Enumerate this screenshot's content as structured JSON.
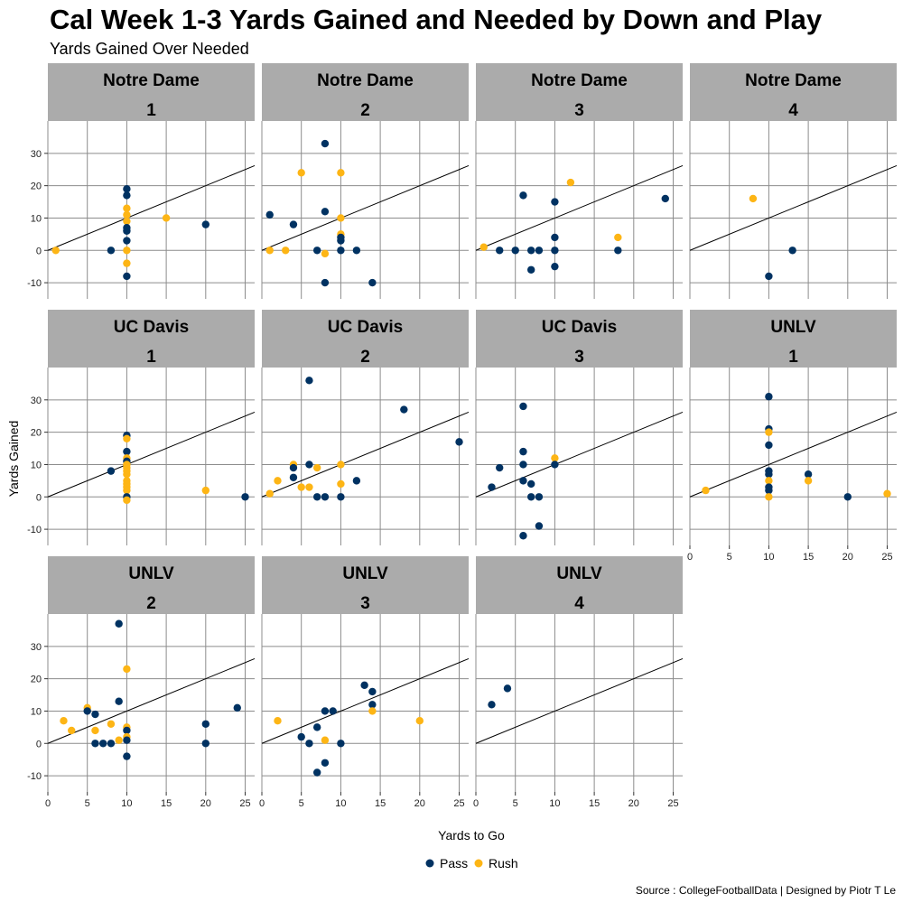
{
  "chart_data": {
    "type": "scatter",
    "title": "Cal Week 1-3 Yards Gained and Needed by Down and Play",
    "subtitle": "Yards Gained Over Needed",
    "xlabel": "Yards to Go",
    "ylabel": "Yards Gained",
    "xlim": [
      0,
      26.2
    ],
    "ylim": [
      -15,
      40
    ],
    "xticks": [
      0,
      5,
      10,
      15,
      20,
      25
    ],
    "yticks": [
      -10,
      0,
      10,
      20,
      30
    ],
    "reference_line": "y = x",
    "caption": "Source : CollegeFootballData | Designed by Piotr T Le",
    "legend": [
      {
        "name": "Pass",
        "color": "#003262"
      },
      {
        "name": "Rush",
        "color": "#FDB515"
      }
    ],
    "colors": {
      "Pass": "#003262",
      "Rush": "#FDB515",
      "strip": "#ABABAB",
      "grid": "#8C8C8C"
    },
    "panels": [
      {
        "opponent": "Notre Dame",
        "down": "1",
        "points": [
          {
            "x": 1,
            "y": 0,
            "play": "Rush"
          },
          {
            "x": 8,
            "y": 0,
            "play": "Pass"
          },
          {
            "x": 10,
            "y": 19,
            "play": "Pass"
          },
          {
            "x": 10,
            "y": 17,
            "play": "Pass"
          },
          {
            "x": 10,
            "y": 13,
            "play": "Rush"
          },
          {
            "x": 10,
            "y": 11,
            "play": "Rush"
          },
          {
            "x": 10,
            "y": 9,
            "play": "Rush"
          },
          {
            "x": 10,
            "y": 7,
            "play": "Pass"
          },
          {
            "x": 10,
            "y": 6,
            "play": "Pass"
          },
          {
            "x": 10,
            "y": 3,
            "play": "Pass"
          },
          {
            "x": 10,
            "y": 0,
            "play": "Rush"
          },
          {
            "x": 10,
            "y": -4,
            "play": "Rush"
          },
          {
            "x": 10,
            "y": -8,
            "play": "Pass"
          },
          {
            "x": 15,
            "y": 10,
            "play": "Rush"
          },
          {
            "x": 20,
            "y": 8,
            "play": "Pass"
          }
        ]
      },
      {
        "opponent": "Notre Dame",
        "down": "2",
        "points": [
          {
            "x": 1,
            "y": 11,
            "play": "Pass"
          },
          {
            "x": 1,
            "y": 0,
            "play": "Rush"
          },
          {
            "x": 3,
            "y": 0,
            "play": "Rush"
          },
          {
            "x": 4,
            "y": 8,
            "play": "Pass"
          },
          {
            "x": 5,
            "y": 24,
            "play": "Rush"
          },
          {
            "x": 7,
            "y": 0,
            "play": "Pass"
          },
          {
            "x": 8,
            "y": 33,
            "play": "Pass"
          },
          {
            "x": 8,
            "y": 12,
            "play": "Pass"
          },
          {
            "x": 8,
            "y": -1,
            "play": "Rush"
          },
          {
            "x": 8,
            "y": -10,
            "play": "Pass"
          },
          {
            "x": 10,
            "y": 24,
            "play": "Rush"
          },
          {
            "x": 10,
            "y": 10,
            "play": "Rush"
          },
          {
            "x": 10,
            "y": 5,
            "play": "Rush"
          },
          {
            "x": 10,
            "y": 4,
            "play": "Pass"
          },
          {
            "x": 10,
            "y": 3,
            "play": "Pass"
          },
          {
            "x": 10,
            "y": 0,
            "play": "Pass"
          },
          {
            "x": 12,
            "y": 0,
            "play": "Pass"
          },
          {
            "x": 14,
            "y": -10,
            "play": "Pass"
          }
        ]
      },
      {
        "opponent": "Notre Dame",
        "down": "3",
        "points": [
          {
            "x": 1,
            "y": 1,
            "play": "Rush"
          },
          {
            "x": 3,
            "y": 0,
            "play": "Pass"
          },
          {
            "x": 5,
            "y": 0,
            "play": "Pass"
          },
          {
            "x": 6,
            "y": 17,
            "play": "Pass"
          },
          {
            "x": 7,
            "y": 0,
            "play": "Pass"
          },
          {
            "x": 7,
            "y": -6,
            "play": "Pass"
          },
          {
            "x": 8,
            "y": 0,
            "play": "Pass"
          },
          {
            "x": 10,
            "y": 15,
            "play": "Pass"
          },
          {
            "x": 10,
            "y": 4,
            "play": "Pass"
          },
          {
            "x": 10,
            "y": 0,
            "play": "Pass"
          },
          {
            "x": 10,
            "y": -5,
            "play": "Pass"
          },
          {
            "x": 12,
            "y": 21,
            "play": "Rush"
          },
          {
            "x": 18,
            "y": 4,
            "play": "Rush"
          },
          {
            "x": 18,
            "y": 0,
            "play": "Pass"
          },
          {
            "x": 24,
            "y": 16,
            "play": "Pass"
          }
        ]
      },
      {
        "opponent": "Notre Dame",
        "down": "4",
        "points": [
          {
            "x": 8,
            "y": 16,
            "play": "Rush"
          },
          {
            "x": 10,
            "y": -8,
            "play": "Pass"
          },
          {
            "x": 13,
            "y": 0,
            "play": "Pass"
          }
        ]
      },
      {
        "opponent": "UC Davis",
        "down": "1",
        "points": [
          {
            "x": 8,
            "y": 8,
            "play": "Pass"
          },
          {
            "x": 10,
            "y": 19,
            "play": "Pass"
          },
          {
            "x": 10,
            "y": 18,
            "play": "Rush"
          },
          {
            "x": 10,
            "y": 14,
            "play": "Pass"
          },
          {
            "x": 10,
            "y": 12,
            "play": "Rush"
          },
          {
            "x": 10,
            "y": 11,
            "play": "Pass"
          },
          {
            "x": 10,
            "y": 10,
            "play": "Rush"
          },
          {
            "x": 10,
            "y": 9,
            "play": "Rush"
          },
          {
            "x": 10,
            "y": 8,
            "play": "Rush"
          },
          {
            "x": 10,
            "y": 7,
            "play": "Rush"
          },
          {
            "x": 10,
            "y": 5,
            "play": "Rush"
          },
          {
            "x": 10,
            "y": 4,
            "play": "Rush"
          },
          {
            "x": 10,
            "y": 3,
            "play": "Rush"
          },
          {
            "x": 10,
            "y": 2,
            "play": "Rush"
          },
          {
            "x": 10,
            "y": 0,
            "play": "Pass"
          },
          {
            "x": 10,
            "y": -1,
            "play": "Rush"
          },
          {
            "x": 20,
            "y": 2,
            "play": "Rush"
          },
          {
            "x": 25,
            "y": 0,
            "play": "Pass"
          }
        ]
      },
      {
        "opponent": "UC Davis",
        "down": "2",
        "points": [
          {
            "x": 1,
            "y": 1,
            "play": "Rush"
          },
          {
            "x": 2,
            "y": 5,
            "play": "Rush"
          },
          {
            "x": 4,
            "y": 10,
            "play": "Rush"
          },
          {
            "x": 4,
            "y": 9,
            "play": "Pass"
          },
          {
            "x": 4,
            "y": 6,
            "play": "Pass"
          },
          {
            "x": 5,
            "y": 3,
            "play": "Rush"
          },
          {
            "x": 6,
            "y": 36,
            "play": "Pass"
          },
          {
            "x": 6,
            "y": 10,
            "play": "Pass"
          },
          {
            "x": 6,
            "y": 3,
            "play": "Rush"
          },
          {
            "x": 7,
            "y": 9,
            "play": "Rush"
          },
          {
            "x": 7,
            "y": 0,
            "play": "Pass"
          },
          {
            "x": 8,
            "y": 0,
            "play": "Pass"
          },
          {
            "x": 10,
            "y": 10,
            "play": "Rush"
          },
          {
            "x": 10,
            "y": 4,
            "play": "Rush"
          },
          {
            "x": 10,
            "y": 0,
            "play": "Pass"
          },
          {
            "x": 12,
            "y": 5,
            "play": "Pass"
          },
          {
            "x": 18,
            "y": 27,
            "play": "Pass"
          },
          {
            "x": 25,
            "y": 17,
            "play": "Pass"
          }
        ]
      },
      {
        "opponent": "UC Davis",
        "down": "3",
        "points": [
          {
            "x": 2,
            "y": 3,
            "play": "Pass"
          },
          {
            "x": 3,
            "y": 9,
            "play": "Pass"
          },
          {
            "x": 6,
            "y": 28,
            "play": "Pass"
          },
          {
            "x": 6,
            "y": 14,
            "play": "Pass"
          },
          {
            "x": 6,
            "y": 10,
            "play": "Pass"
          },
          {
            "x": 6,
            "y": 5,
            "play": "Pass"
          },
          {
            "x": 6,
            "y": -12,
            "play": "Pass"
          },
          {
            "x": 7,
            "y": 4,
            "play": "Pass"
          },
          {
            "x": 7,
            "y": 0,
            "play": "Pass"
          },
          {
            "x": 8,
            "y": 0,
            "play": "Pass"
          },
          {
            "x": 8,
            "y": -9,
            "play": "Pass"
          },
          {
            "x": 10,
            "y": 12,
            "play": "Rush"
          },
          {
            "x": 10,
            "y": 10,
            "play": "Pass"
          }
        ]
      },
      {
        "opponent": "UNLV",
        "down": "1",
        "points": [
          {
            "x": 2,
            "y": 2,
            "play": "Rush"
          },
          {
            "x": 10,
            "y": 31,
            "play": "Pass"
          },
          {
            "x": 10,
            "y": 21,
            "play": "Pass"
          },
          {
            "x": 10,
            "y": 20,
            "play": "Rush"
          },
          {
            "x": 10,
            "y": 16,
            "play": "Pass"
          },
          {
            "x": 10,
            "y": 8,
            "play": "Pass"
          },
          {
            "x": 10,
            "y": 7,
            "play": "Pass"
          },
          {
            "x": 10,
            "y": 5,
            "play": "Rush"
          },
          {
            "x": 10,
            "y": 3,
            "play": "Pass"
          },
          {
            "x": 10,
            "y": 2,
            "play": "Pass"
          },
          {
            "x": 10,
            "y": 0,
            "play": "Rush"
          },
          {
            "x": 15,
            "y": 7,
            "play": "Pass"
          },
          {
            "x": 15,
            "y": 5,
            "play": "Rush"
          },
          {
            "x": 20,
            "y": 0,
            "play": "Pass"
          },
          {
            "x": 25,
            "y": 1,
            "play": "Rush"
          }
        ]
      },
      {
        "opponent": "UNLV",
        "down": "2",
        "points": [
          {
            "x": 2,
            "y": 7,
            "play": "Rush"
          },
          {
            "x": 3,
            "y": 4,
            "play": "Rush"
          },
          {
            "x": 5,
            "y": 11,
            "play": "Rush"
          },
          {
            "x": 5,
            "y": 10,
            "play": "Pass"
          },
          {
            "x": 6,
            "y": 9,
            "play": "Pass"
          },
          {
            "x": 6,
            "y": 4,
            "play": "Rush"
          },
          {
            "x": 6,
            "y": 0,
            "play": "Pass"
          },
          {
            "x": 7,
            "y": 0,
            "play": "Pass"
          },
          {
            "x": 8,
            "y": 6,
            "play": "Rush"
          },
          {
            "x": 8,
            "y": 0,
            "play": "Pass"
          },
          {
            "x": 9,
            "y": 37,
            "play": "Pass"
          },
          {
            "x": 9,
            "y": 13,
            "play": "Pass"
          },
          {
            "x": 9,
            "y": 1,
            "play": "Rush"
          },
          {
            "x": 10,
            "y": 23,
            "play": "Rush"
          },
          {
            "x": 10,
            "y": 5,
            "play": "Rush"
          },
          {
            "x": 10,
            "y": 4,
            "play": "Pass"
          },
          {
            "x": 10,
            "y": 2,
            "play": "Rush"
          },
          {
            "x": 10,
            "y": 1,
            "play": "Pass"
          },
          {
            "x": 10,
            "y": -4,
            "play": "Pass"
          },
          {
            "x": 20,
            "y": 6,
            "play": "Pass"
          },
          {
            "x": 20,
            "y": 0,
            "play": "Pass"
          },
          {
            "x": 24,
            "y": 11,
            "play": "Pass"
          }
        ]
      },
      {
        "opponent": "UNLV",
        "down": "3",
        "points": [
          {
            "x": 2,
            "y": 7,
            "play": "Rush"
          },
          {
            "x": 5,
            "y": 2,
            "play": "Pass"
          },
          {
            "x": 6,
            "y": 0,
            "play": "Pass"
          },
          {
            "x": 7,
            "y": 5,
            "play": "Pass"
          },
          {
            "x": 7,
            "y": -9,
            "play": "Pass"
          },
          {
            "x": 8,
            "y": 10,
            "play": "Pass"
          },
          {
            "x": 8,
            "y": 1,
            "play": "Rush"
          },
          {
            "x": 8,
            "y": -6,
            "play": "Pass"
          },
          {
            "x": 9,
            "y": 10,
            "play": "Pass"
          },
          {
            "x": 10,
            "y": 0,
            "play": "Pass"
          },
          {
            "x": 13,
            "y": 18,
            "play": "Pass"
          },
          {
            "x": 14,
            "y": 16,
            "play": "Pass"
          },
          {
            "x": 14,
            "y": 12,
            "play": "Pass"
          },
          {
            "x": 14,
            "y": 10,
            "play": "Rush"
          },
          {
            "x": 20,
            "y": 7,
            "play": "Rush"
          }
        ]
      },
      {
        "opponent": "UNLV",
        "down": "4",
        "points": [
          {
            "x": 2,
            "y": 12,
            "play": "Pass"
          },
          {
            "x": 4,
            "y": 17,
            "play": "Pass"
          }
        ]
      }
    ]
  }
}
